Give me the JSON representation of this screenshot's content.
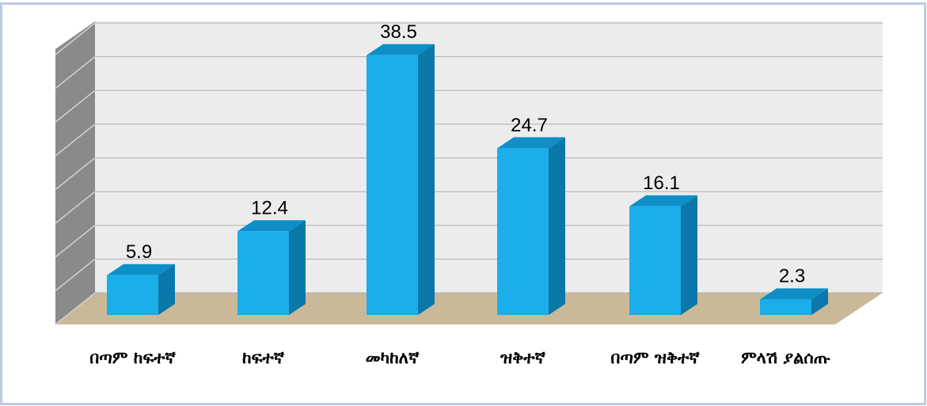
{
  "chart_data": {
    "type": "bar3d",
    "categories": [
      "በጣም ከፍተኛ",
      "ከፍተኛ",
      "መካከለኛ",
      "ዝቅተኛ",
      "በጣም ዝቅተኛ",
      "ምላሽ ያልሰጡ"
    ],
    "values": [
      5.9,
      12.4,
      38.5,
      24.7,
      16.1,
      2.3
    ],
    "color": "#1aaeea",
    "ylim": [
      0,
      40
    ],
    "yticks": [
      0,
      5,
      10,
      15,
      20,
      25,
      30,
      35,
      40
    ],
    "grid": true
  }
}
